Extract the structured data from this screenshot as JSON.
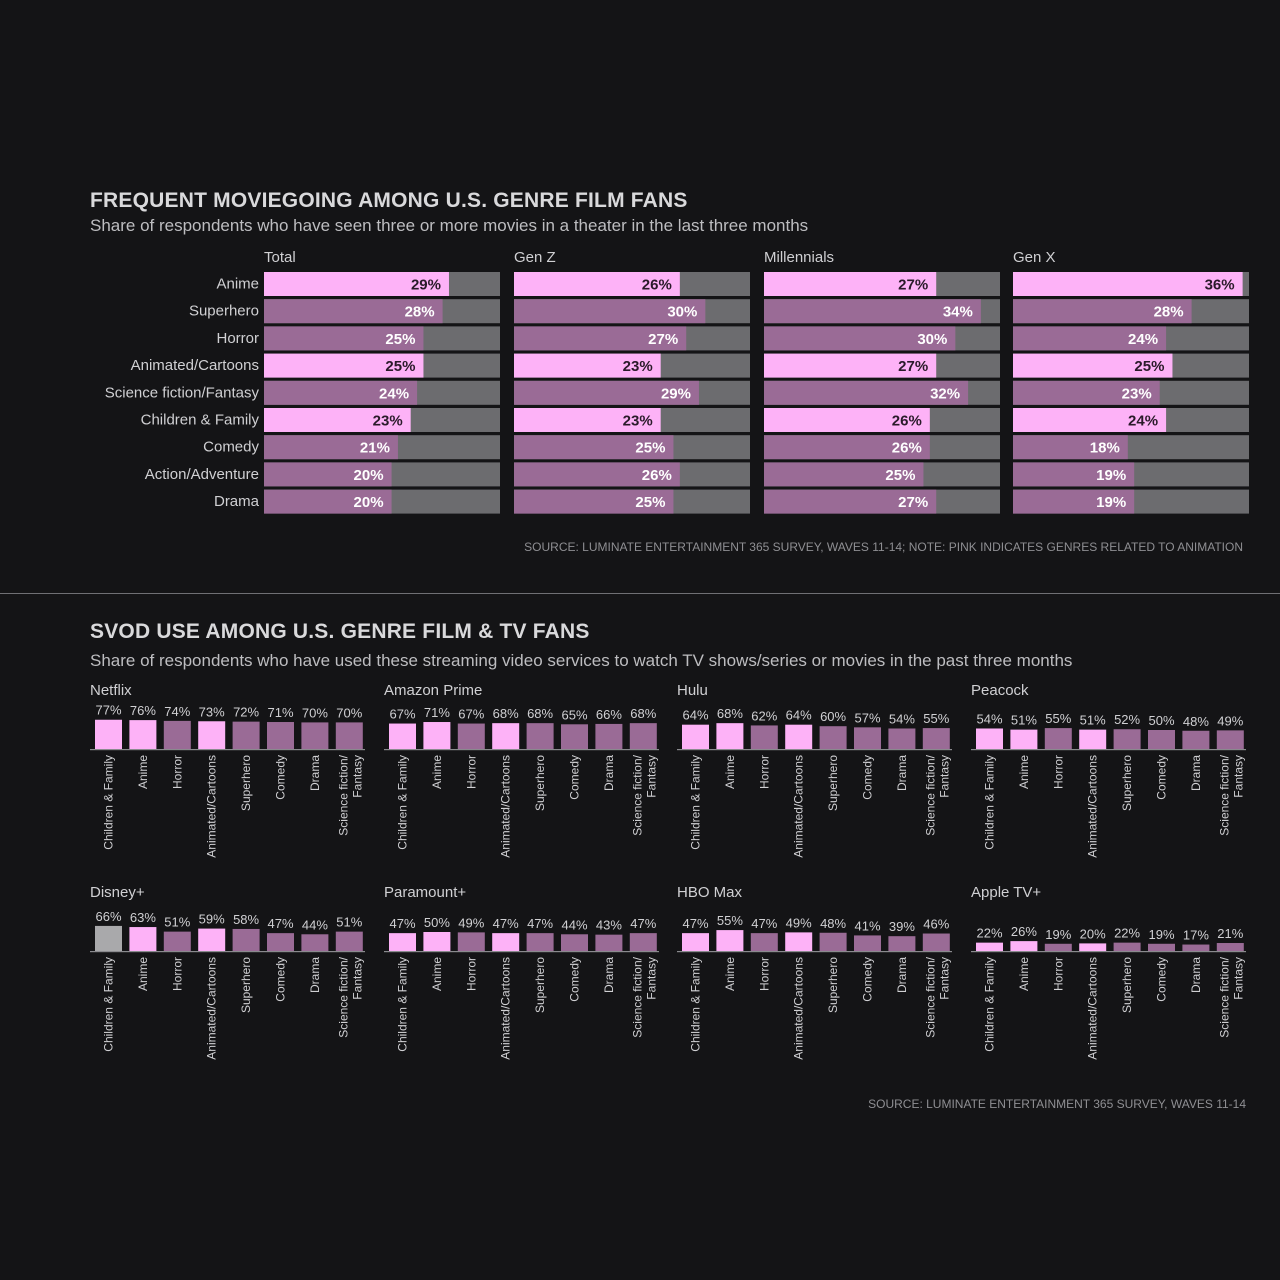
{
  "section1": {
    "title": "FREQUENT MOVIEGOING AMONG U.S. GENRE FILM FANS",
    "subtitle": "Share of respondents who have seen three or more movies in a theater in the last three months",
    "source": "SOURCE: LUMINATE ENTERTAINMENT 365 SURVEY, WAVES 11-14; NOTE: PINK INDICATES GENRES RELATED TO ANIMATION"
  },
  "section2": {
    "title": "SVOD USE AMONG U.S. GENRE FILM & TV FANS",
    "subtitle": "Share of respondents who have used these streaming video services to watch TV shows/series or movies in the past three months",
    "source": "SOURCE: LUMINATE ENTERTAINMENT 365 SURVEY, WAVES 11-14"
  },
  "colors": {
    "animation_pink": "#fdb2f7",
    "other_genre": "#9a6b96",
    "remainder": "#6c6c6f",
    "highlight_gray": "#a9a9ab",
    "background": "#141416",
    "axis": "#8a8a8e",
    "label_text": "#d0d0d3"
  },
  "chart_data": [
    {
      "type": "bar",
      "orientation": "horizontal",
      "value_unit": "%",
      "xlim": [
        0,
        100
      ],
      "categories": [
        "Anime",
        "Superhero",
        "Horror",
        "Animated/Cartoons",
        "Science fiction/Fantasy",
        "Children & Family",
        "Comedy",
        "Action/Adventure",
        "Drama"
      ],
      "animation_related": [
        "Anime",
        "Animated/Cartoons",
        "Children & Family"
      ],
      "panels": [
        {
          "name": "Total",
          "values": [
            29,
            28,
            25,
            25,
            24,
            23,
            21,
            20,
            20
          ]
        },
        {
          "name": "Gen Z",
          "values": [
            26,
            30,
            27,
            23,
            29,
            23,
            25,
            26,
            25
          ]
        },
        {
          "name": "Millennials",
          "values": [
            27,
            34,
            30,
            27,
            32,
            26,
            26,
            25,
            27
          ]
        },
        {
          "name": "Gen X",
          "values": [
            36,
            28,
            24,
            25,
            23,
            24,
            18,
            19,
            19
          ]
        }
      ]
    },
    {
      "type": "bar",
      "orientation": "vertical",
      "value_unit": "%",
      "ylim": [
        0,
        100
      ],
      "categories": [
        "Children & Family",
        "Anime",
        "Horror",
        "Animated/Cartoons",
        "Superhero",
        "Comedy",
        "Drama",
        "Science fiction/ Fantasy"
      ],
      "animation_related": [
        "Children & Family",
        "Anime",
        "Animated/Cartoons"
      ],
      "panels": [
        {
          "name": "Netflix",
          "values": [
            77,
            76,
            74,
            73,
            72,
            71,
            70,
            70
          ]
        },
        {
          "name": "Amazon Prime",
          "values": [
            67,
            71,
            67,
            68,
            68,
            65,
            66,
            68
          ]
        },
        {
          "name": "Hulu",
          "values": [
            64,
            68,
            62,
            64,
            60,
            57,
            54,
            55
          ]
        },
        {
          "name": "Peacock",
          "values": [
            54,
            51,
            55,
            51,
            52,
            50,
            48,
            49
          ]
        },
        {
          "name": "Disney+",
          "values": [
            66,
            63,
            51,
            59,
            58,
            47,
            44,
            51
          ],
          "gray_bars": [
            0
          ]
        },
        {
          "name": "Paramount+",
          "values": [
            47,
            50,
            49,
            47,
            47,
            44,
            43,
            47
          ]
        },
        {
          "name": "HBO Max",
          "values": [
            47,
            55,
            47,
            49,
            48,
            41,
            39,
            46
          ]
        },
        {
          "name": "Apple TV+",
          "values": [
            22,
            26,
            19,
            20,
            22,
            19,
            17,
            21
          ]
        }
      ]
    }
  ]
}
